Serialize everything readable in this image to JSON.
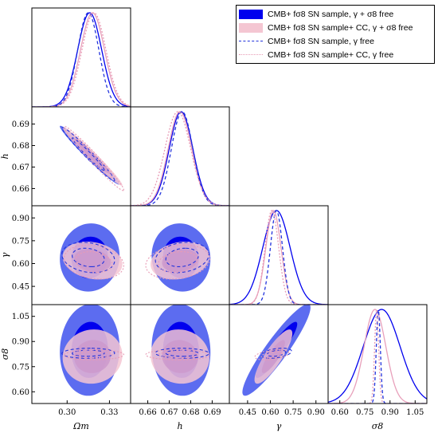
{
  "chart_data": {
    "type": "corner",
    "params": [
      {
        "key": "omega_m",
        "label": "Ωm",
        "ticks": [
          "0.30",
          "0.33"
        ],
        "tick_values": [
          0.3,
          0.33
        ],
        "range": [
          0.275,
          0.345
        ]
      },
      {
        "key": "h",
        "label": "h",
        "ticks": [
          "0.66",
          "0.67",
          "0.68",
          "0.69"
        ],
        "tick_values": [
          0.66,
          0.67,
          0.68,
          0.69
        ],
        "range": [
          0.652,
          0.698
        ]
      },
      {
        "key": "gamma",
        "label": "γ",
        "ticks": [
          "0.45",
          "0.60",
          "0.75",
          "0.90"
        ],
        "tick_values": [
          0.45,
          0.6,
          0.75,
          0.9
        ],
        "range": [
          0.33,
          0.98
        ]
      },
      {
        "key": "sigma8",
        "label": "σ8",
        "ticks": [
          "0.60",
          "0.75",
          "0.90",
          "1.05"
        ],
        "tick_values": [
          0.6,
          0.75,
          0.9,
          1.05
        ],
        "range": [
          0.53,
          1.12
        ]
      }
    ],
    "series": [
      {
        "name": "CMB+ fσ8 SN sample, γ + σ8 free",
        "style": "filled",
        "color_outer": "#5c6cf0",
        "color_inner": "#0000ee",
        "mean": [
          0.316,
          0.6755,
          0.64,
          0.85
        ],
        "sigma": [
          0.0085,
          0.0055,
          0.09,
          0.11
        ],
        "corr": {
          "omega_m-h": -0.98,
          "omega_m-gamma": 0.05,
          "omega_m-sigma8": 0.05,
          "h-gamma": -0.05,
          "h-sigma8": -0.05,
          "gamma-sigma8": 0.92
        }
      },
      {
        "name": "CMB+ fσ8 SN sample+ CC, γ + σ8 free",
        "style": "filled",
        "color_outer": "#f4c6d2",
        "color_inner": "#cc99cc",
        "mean": [
          0.318,
          0.675,
          0.62,
          0.81
        ],
        "sigma": [
          0.0085,
          0.0055,
          0.05,
          0.065
        ],
        "corr": {
          "omega_m-h": -0.98,
          "omega_m-gamma": -0.2,
          "omega_m-sigma8": 0.05,
          "h-gamma": 0.2,
          "h-sigma8": -0.05,
          "gamma-sigma8": 0.85
        }
      },
      {
        "name": "CMB+ fσ8 SN sample, γ free",
        "style": "dashed",
        "color": "#2233dd",
        "mean": [
          0.315,
          0.676,
          0.64,
          0.83
        ],
        "sigma": [
          0.0075,
          0.005,
          0.04,
          0.012
        ],
        "corr": {
          "omega_m-h": -0.98,
          "omega_m-gamma": -0.2,
          "omega_m-sigma8": 0.05,
          "h-gamma": 0.2,
          "h-sigma8": -0.05,
          "gamma-sigma8": 0.4
        }
      },
      {
        "name": "CMB+ fσ8 SN sample+ CC, γ free",
        "style": "dotted",
        "color": "#e89bb5",
        "mean": [
          0.319,
          0.674,
          0.61,
          0.82
        ],
        "sigma": [
          0.0085,
          0.006,
          0.045,
          0.012
        ],
        "corr": {
          "omega_m-h": -0.98,
          "omega_m-gamma": -0.2,
          "omega_m-sigma8": 0.05,
          "h-gamma": 0.2,
          "h-sigma8": -0.05,
          "gamma-sigma8": 0.4
        }
      }
    ],
    "legend_placement": "top-right"
  }
}
